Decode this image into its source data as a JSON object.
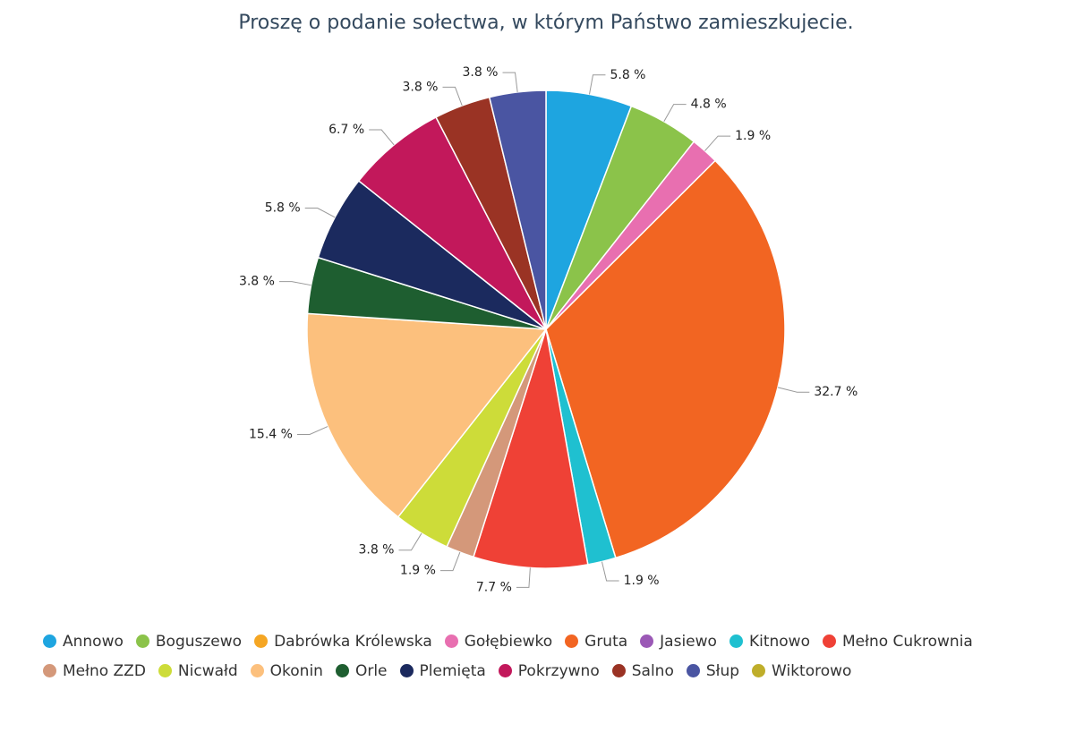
{
  "chart_data": {
    "type": "pie",
    "title": "Proszę o podanie sołectwa, w którym Państwo zamieszkujecie.",
    "categories": [
      "Annowo",
      "Boguszewo",
      "Dabrówka Królewska",
      "Gołębiewko",
      "Gruta",
      "Jasiewo",
      "Kitnowo",
      "Mełno Cukrownia",
      "Mełno ZZD",
      "Nicwałd",
      "Okonin",
      "Orle",
      "Plemięta",
      "Pokrzywno",
      "Salno",
      "Słup",
      "Wiktorowo"
    ],
    "values": [
      5.8,
      4.8,
      0,
      1.9,
      32.7,
      0,
      1.9,
      7.7,
      1.9,
      3.8,
      15.4,
      3.8,
      5.8,
      6.7,
      3.8,
      3.8,
      0
    ],
    "value_labels": [
      "5.8 %",
      "4.8 %",
      null,
      "1.9 %",
      "32.7 %",
      null,
      "1.9 %",
      "7.7 %",
      "1.9 %",
      "3.8 %",
      "15.4 %",
      "3.8 %",
      "5.8 %",
      "6.7 %",
      "3.8 %",
      "3.8 %",
      null
    ],
    "colors": [
      "#1ea5e0",
      "#8bc34a",
      "#f5a623",
      "#e86fb0",
      "#f26522",
      "#9b59b6",
      "#1fc0d0",
      "#ef4136",
      "#d4987a",
      "#cddc39",
      "#fcc07d",
      "#1e5e30",
      "#1b2a5e",
      "#c2185b",
      "#9a3324",
      "#4a55a2",
      "#bfae2a"
    ],
    "legend": "bottom"
  }
}
